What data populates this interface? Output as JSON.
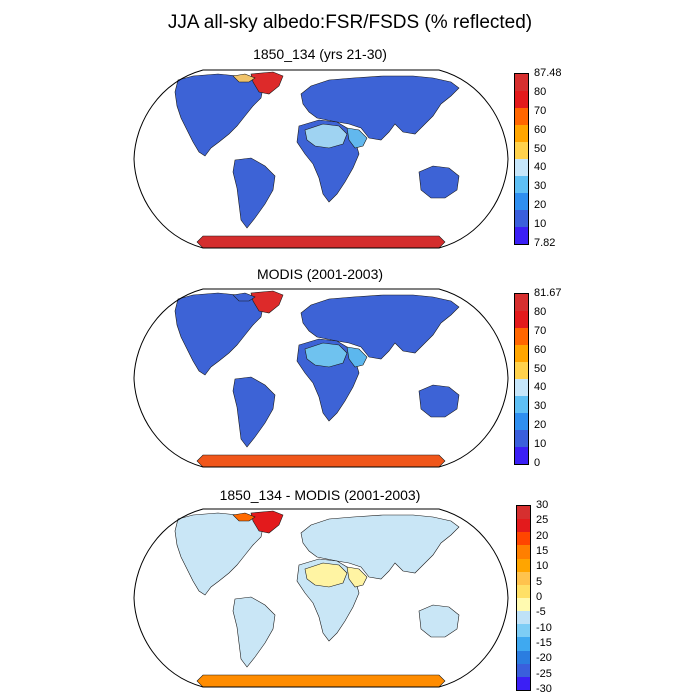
{
  "title": "JJA all-sky albedo:FSR/FSDS (% reflected)",
  "panels": [
    {
      "id": "model",
      "title": "1850_134 (yrs 21-30)",
      "colorbar": {
        "labels": [
          "87.48",
          "80",
          "70",
          "60",
          "50",
          "40",
          "30",
          "20",
          "10",
          "7.82"
        ],
        "colors": [
          "#d62f2f",
          "#e31a1c",
          "#ff6600",
          "#ffa500",
          "#ffd24d",
          "#c6e6fa",
          "#5fc0f5",
          "#2f8ff0",
          "#3a5fdc",
          "#3b1ff5"
        ]
      },
      "colors": {
        "land": "#3d63d6",
        "sahara": "#9fd3f2",
        "arabia": "#62b8ee",
        "greenland": "#dd2a2a",
        "antarctica": "#d42d2d",
        "arctic": "#f0c36a"
      }
    },
    {
      "id": "obs",
      "title": "MODIS (2001-2003)",
      "colorbar": {
        "labels": [
          "81.67",
          "80",
          "70",
          "60",
          "50",
          "40",
          "30",
          "20",
          "10",
          "0"
        ],
        "colors": [
          "#d62f2f",
          "#e31a1c",
          "#ff6600",
          "#ffa500",
          "#ffd24d",
          "#c6e6fa",
          "#5fc0f5",
          "#2f8ff0",
          "#3a5fdc",
          "#3b1ff5"
        ]
      },
      "colors": {
        "land": "#3d63d6",
        "sahara": "#6fc2ef",
        "arabia": "#5cb7ee",
        "greenland": "#dd2a2a",
        "antarctica": "#f0561a",
        "arctic": "#3d63d6"
      }
    },
    {
      "id": "diff",
      "title": "1850_134 - MODIS (2001-2003)",
      "colorbar": {
        "labels": [
          "30",
          "25",
          "20",
          "15",
          "10",
          "5",
          "0",
          "-5",
          "-10",
          "-15",
          "-20",
          "-25",
          "-30"
        ],
        "colors": [
          "#d62f2f",
          "#e31a1c",
          "#ff4500",
          "#ff7f00",
          "#ffa500",
          "#ffc34d",
          "#ffe066",
          "#fffab0",
          "#bfe2f7",
          "#7dcdf5",
          "#3fa9f0",
          "#2b7de0",
          "#3a5fdc",
          "#3b1ff5"
        ]
      },
      "colors": {
        "land": "#c9e6f6",
        "sahara": "#fff4a3",
        "arabia": "#fff4a3",
        "greenland": "#e31a1c",
        "antarctica": "#ff8c00",
        "arctic": "#ff6a00"
      }
    }
  ]
}
